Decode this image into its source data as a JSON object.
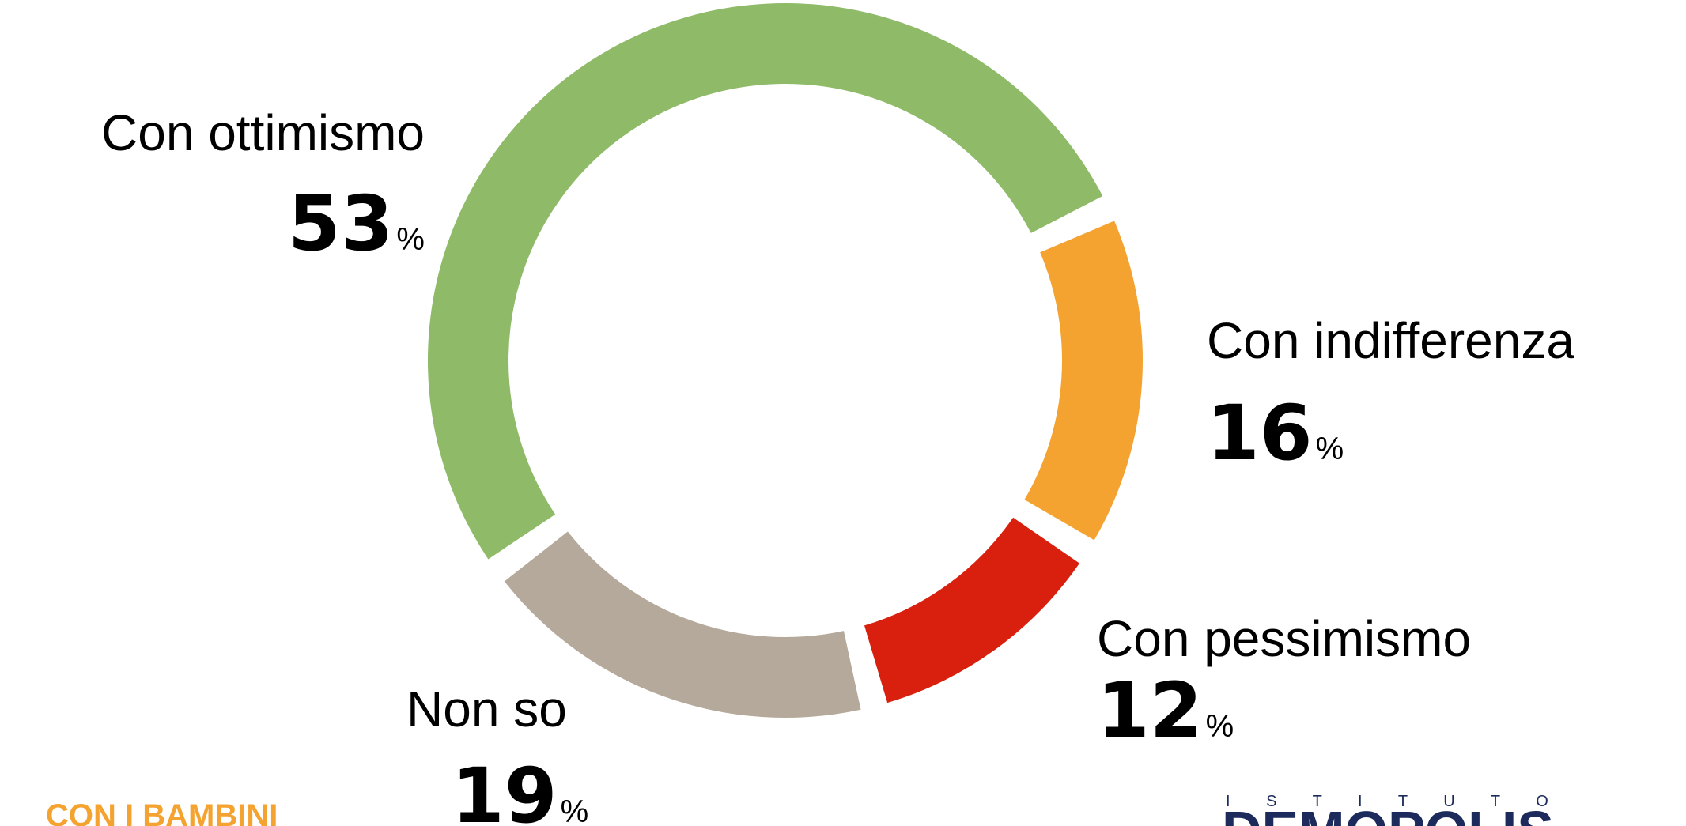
{
  "chart_data": {
    "type": "donut",
    "categories": [
      "Con ottimismo",
      "Con indifferenza",
      "Con pessimismo",
      "Non so"
    ],
    "values": [
      53,
      16,
      12,
      19
    ],
    "unit": "%",
    "colors": [
      "#8fbb69",
      "#f5a330",
      "#d9200f",
      "#b5a99b"
    ]
  },
  "logos": [
    "CON I BAMBINI",
    "I S T I T U T O",
    "DEMOPOLIS"
  ]
}
